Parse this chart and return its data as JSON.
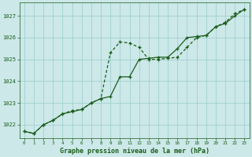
{
  "x": [
    0,
    1,
    2,
    3,
    4,
    5,
    6,
    7,
    8,
    9,
    10,
    11,
    12,
    13,
    14,
    15,
    16,
    17,
    18,
    19,
    20,
    21,
    22,
    23
  ],
  "line_solid": [
    1021.7,
    1021.6,
    1022.0,
    1022.2,
    1022.5,
    1022.6,
    1022.7,
    1023.0,
    1023.2,
    1023.3,
    1024.2,
    1024.2,
    1025.0,
    1025.05,
    1025.1,
    1025.1,
    1025.5,
    1026.0,
    1026.05,
    1026.1,
    1026.5,
    1026.65,
    1027.0,
    1027.3
  ],
  "line_dashed": [
    1021.7,
    1021.6,
    1022.0,
    1022.2,
    1022.5,
    1022.65,
    1022.7,
    1023.0,
    1023.2,
    1025.3,
    1025.8,
    1025.75,
    1025.55,
    1025.0,
    1025.0,
    1025.05,
    1025.1,
    1025.55,
    1026.0,
    1026.1,
    1026.5,
    1026.7,
    1027.1,
    1027.3
  ],
  "bg_color": "#cce8e8",
  "line_color": "#1a5c1a",
  "grid_color": "#99cccc",
  "xlabel": "Graphe pression niveau de la mer (hPa)",
  "xlim_min": -0.5,
  "xlim_max": 23.5,
  "ylim_min": 1021.4,
  "ylim_max": 1027.6,
  "yticks": [
    1022,
    1023,
    1024,
    1025,
    1026,
    1027
  ],
  "xticks": [
    0,
    1,
    2,
    3,
    4,
    5,
    6,
    7,
    8,
    9,
    10,
    11,
    12,
    13,
    14,
    15,
    16,
    17,
    18,
    19,
    20,
    21,
    22,
    23
  ]
}
